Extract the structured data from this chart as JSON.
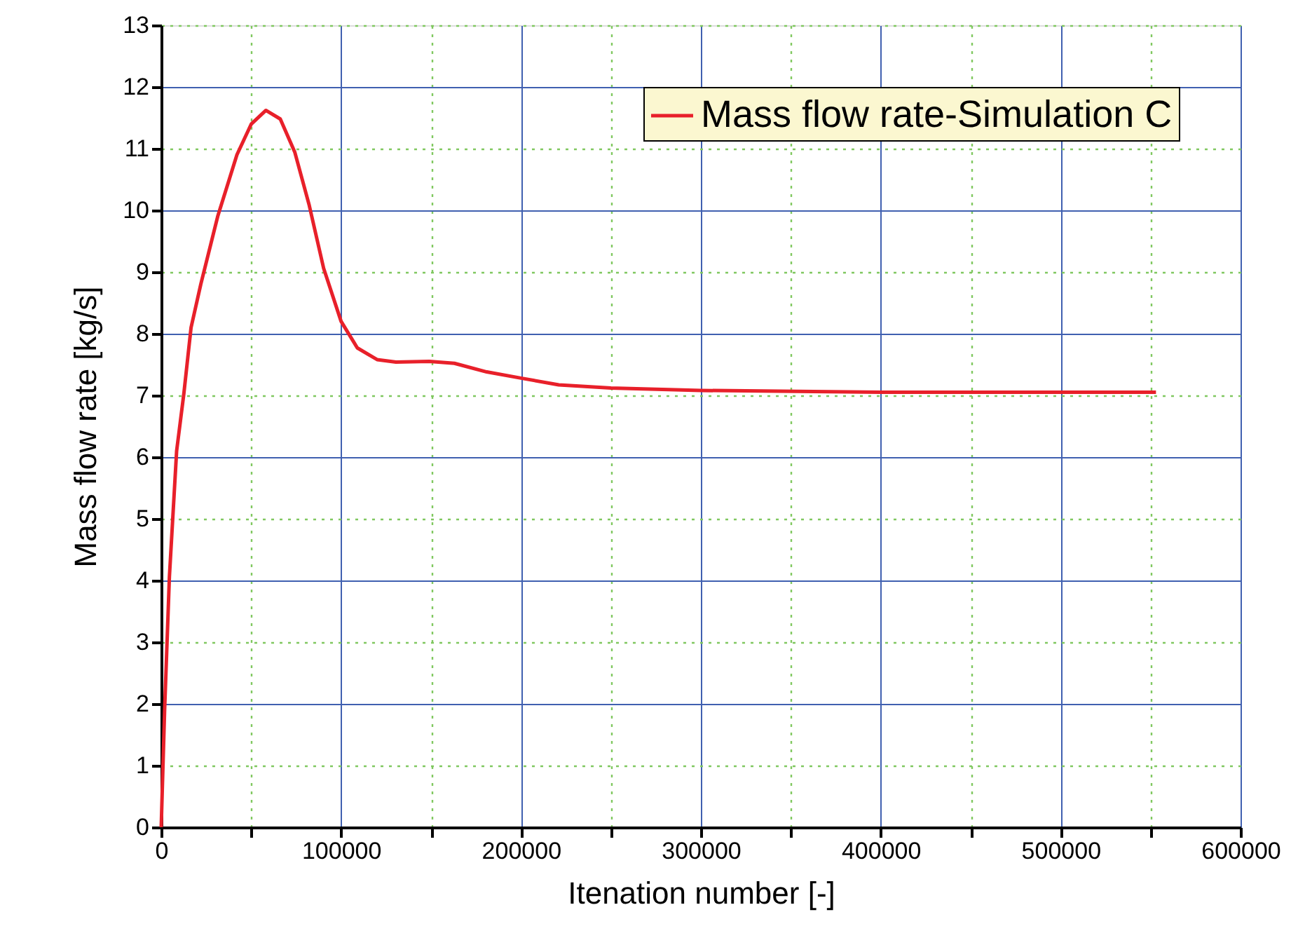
{
  "chart_data": {
    "type": "line",
    "xlabel": "Itenation number [-]",
    "ylabel": "Mass flow rate [kg/s]",
    "xlim": [
      0,
      600000
    ],
    "ylim": [
      0,
      13
    ],
    "xticks": [
      0,
      {
        "value": 50000,
        "label": null
      },
      100000,
      {
        "value": 150000,
        "label": null
      },
      200000,
      {
        "value": 250000,
        "label": null
      },
      300000,
      {
        "value": 350000,
        "label": null
      },
      400000,
      {
        "value": 450000,
        "label": null
      },
      500000,
      {
        "value": 550000,
        "label": null
      },
      600000
    ],
    "yticks": [
      0,
      1,
      2,
      3,
      4,
      5,
      6,
      7,
      8,
      9,
      10,
      11,
      12,
      13
    ],
    "grid": true,
    "legend": "top right",
    "marker": "none",
    "line_style": "solid",
    "series": [
      {
        "name": "Mass flow rate-Simulation C",
        "color": "#e8202a",
        "x": [
          0,
          1900,
          4560,
          8580,
          12600,
          16600,
          22000,
          31400,
          42100,
          50100,
          58200,
          66200,
          74300,
          82300,
          90300,
          100000,
          109000,
          120000,
          130500,
          149000,
          163000,
          181000,
          200000,
          221000,
          250000,
          300000,
          400000,
          553000
        ],
        "values": [
          0,
          1.9,
          4.06,
          6.1,
          7.03,
          8.1,
          8.8,
          9.9,
          10.9,
          11.4,
          11.62,
          11.48,
          10.94,
          10.08,
          9.06,
          8.2,
          7.77,
          7.58,
          7.54,
          7.55,
          7.52,
          7.38,
          7.28,
          7.17,
          7.12,
          7.08,
          7.05,
          7.05
        ]
      }
    ]
  }
}
